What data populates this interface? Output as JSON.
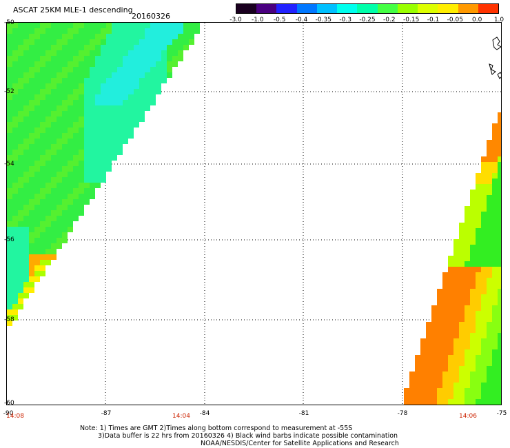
{
  "header": {
    "title": "ASCAT 25KM MLE-1 descending",
    "date": "20160326"
  },
  "colorbar": {
    "labels": [
      "-3.0",
      "-1.0",
      "-0.5",
      "-0.4",
      "-0.35",
      "-0.3",
      "-0.25",
      "-0.2",
      "-0.15",
      "-0.1",
      "-0.05",
      "0.0",
      "1.0"
    ],
    "colors": [
      "#1a0020",
      "#4a0080",
      "#2222ff",
      "#0077ff",
      "#00c0ff",
      "#00ffee",
      "#00ffaa",
      "#44ff44",
      "#99ff00",
      "#ddff00",
      "#ffee00",
      "#ff9900",
      "#ff3300"
    ]
  },
  "axes": {
    "lat_labels": [
      "-50",
      "-52",
      "-54",
      "-56",
      "-58",
      "-60"
    ],
    "lon_labels": [
      "-90",
      "-87",
      "-84",
      "-81",
      "-78",
      "-75"
    ]
  },
  "times": {
    "t1": "14:08",
    "t2": "14:04",
    "t3": "14:06"
  },
  "notes": {
    "line1": "Note: 1) Times are GMT 2)Times along bottom correspond to measurement at -55S",
    "line2": "3)Data buffer is 22 hrs from 20160326 4) Black wind barbs indicate possible contamination",
    "line3": "NOAA/NESDIS/Center for Satellite Applications and Research"
  }
}
